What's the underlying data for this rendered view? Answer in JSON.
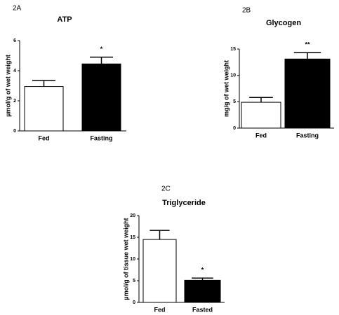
{
  "chart_data": [
    {
      "type": "bar",
      "panel": "2A",
      "title": "ATP",
      "ylabel": "µmol/g of wet weight",
      "categories": [
        "Fed",
        "Fasting"
      ],
      "values": [
        2.95,
        4.45
      ],
      "errors": [
        0.4,
        0.45
      ],
      "colors": [
        "#ffffff",
        "#000000"
      ],
      "annotation": "*",
      "ylim": [
        0,
        6
      ],
      "yticks": [
        0,
        2,
        4,
        6
      ]
    },
    {
      "type": "bar",
      "panel": "2B",
      "title": "Glycogen",
      "ylabel": "mg/g of wet weight",
      "categories": [
        "Fed",
        "Fasting"
      ],
      "values": [
        4.9,
        13.1
      ],
      "errors": [
        0.9,
        1.2
      ],
      "colors": [
        "#ffffff",
        "#000000"
      ],
      "annotation": "**",
      "ylim": [
        0,
        15
      ],
      "yticks": [
        0,
        5,
        10,
        15
      ]
    },
    {
      "type": "bar",
      "panel": "2C",
      "title": "Triglyceride",
      "ylabel": "µmol/g of tissue wet weight",
      "categories": [
        "Fed",
        "Fasted"
      ],
      "values": [
        14.5,
        5.1
      ],
      "errors": [
        2.1,
        0.5
      ],
      "colors": [
        "#ffffff",
        "#000000"
      ],
      "annotation": "*",
      "ylim": [
        0,
        20
      ],
      "yticks": [
        0,
        5,
        10,
        15,
        20
      ]
    }
  ]
}
